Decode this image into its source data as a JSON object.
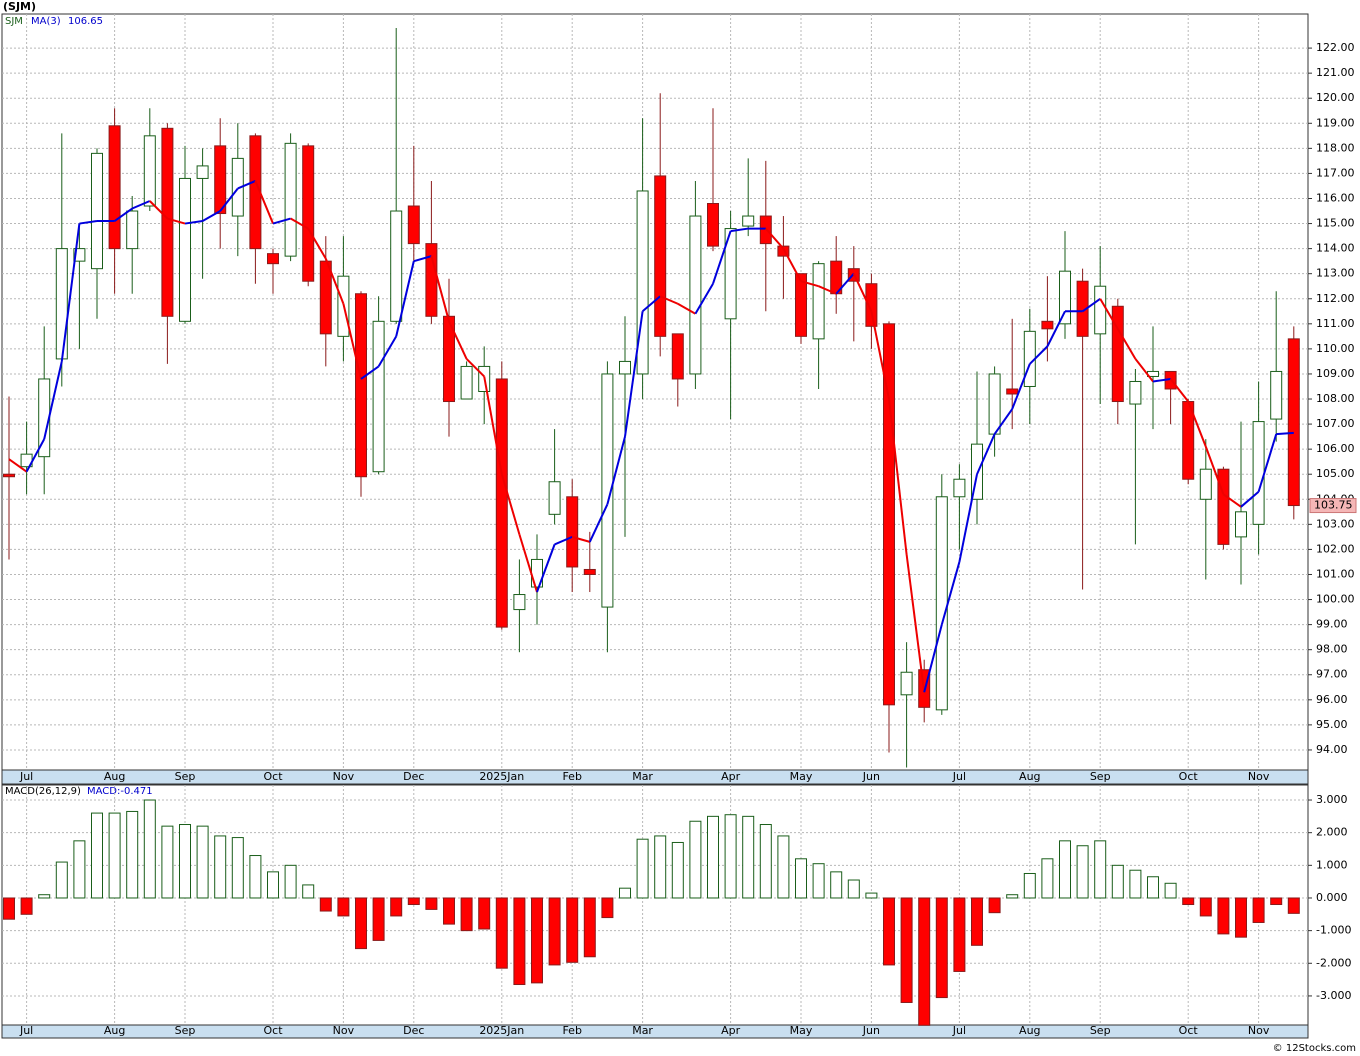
{
  "title": "(SJM)",
  "footer": "© 12Stocks.com",
  "chart_data": [
    {
      "type": "candlestick",
      "symbol": "SJM",
      "ma_name": "MA(3)",
      "up_color": "#1a5e1a",
      "down_color": "#ff0000",
      "ma_up_color": "#0000dd",
      "ma_down_color": "#ee0000",
      "last_color": "#f4b6b6",
      "grid": true,
      "categories": [
        null,
        "Jul",
        null,
        null,
        null,
        null,
        "Aug",
        null,
        null,
        null,
        "Sep",
        null,
        null,
        null,
        null,
        "Oct",
        null,
        null,
        null,
        "Nov",
        null,
        null,
        null,
        "Dec",
        null,
        null,
        null,
        null,
        "2025Jan",
        null,
        null,
        null,
        "Feb",
        null,
        null,
        null,
        "Mar",
        null,
        null,
        null,
        null,
        "Apr",
        null,
        null,
        null,
        "May",
        null,
        null,
        null,
        "Jun",
        null,
        null,
        null,
        null,
        "Jul",
        null,
        null,
        null,
        "Aug",
        null,
        null,
        null,
        "Sep",
        null,
        null,
        null,
        null,
        "Oct",
        null,
        null,
        null,
        "Nov",
        null,
        null
      ],
      "open": [
        105.0,
        105.3,
        105.7,
        109.6,
        113.5,
        113.2,
        118.9,
        114.0,
        115.7,
        118.8,
        111.1,
        116.8,
        118.1,
        115.3,
        118.5,
        113.8,
        113.7,
        118.1,
        113.5,
        110.5,
        112.2,
        105.1,
        111.1,
        115.7,
        114.2,
        111.3,
        108.0,
        108.3,
        108.8,
        99.6,
        100.5,
        103.4,
        104.1,
        101.2,
        99.7,
        109.0,
        109.0,
        116.9,
        110.6,
        109.0,
        115.8,
        111.2,
        114.9,
        115.3,
        114.1,
        113.0,
        110.4,
        113.5,
        113.2,
        112.6,
        111.0,
        96.2,
        97.2,
        95.6,
        104.1,
        104.0,
        106.6,
        108.4,
        108.5,
        111.1,
        111.0,
        112.7,
        110.6,
        111.7,
        107.8,
        108.9,
        109.1,
        107.9,
        104.0,
        105.2,
        102.5,
        103.0,
        107.2,
        110.4
      ],
      "high": [
        108.1,
        107.1,
        110.9,
        118.6,
        115.0,
        118.0,
        119.6,
        116.1,
        119.6,
        119.0,
        118.1,
        118.0,
        119.2,
        119.0,
        118.6,
        114.0,
        118.6,
        118.2,
        114.5,
        114.5,
        112.3,
        112.1,
        122.8,
        118.1,
        116.7,
        112.8,
        109.5,
        110.1,
        109.5,
        101.6,
        102.6,
        106.8,
        104.8,
        102.7,
        109.5,
        111.3,
        119.2,
        120.2,
        110.6,
        116.7,
        119.6,
        115.5,
        117.6,
        117.5,
        115.3,
        113.0,
        113.5,
        114.5,
        114.1,
        113.0,
        111.1,
        98.3,
        97.6,
        105.0,
        105.4,
        109.1,
        109.3,
        111.2,
        111.6,
        112.9,
        114.7,
        113.2,
        114.1,
        112.0,
        109.2,
        110.9,
        109.1,
        108.0,
        106.4,
        105.3,
        107.1,
        108.7,
        112.3,
        110.9
      ],
      "low": [
        101.6,
        104.2,
        104.2,
        108.5,
        110.0,
        111.2,
        112.2,
        112.2,
        115.5,
        109.4,
        111.0,
        112.8,
        114.0,
        113.7,
        112.6,
        112.2,
        113.5,
        112.5,
        109.3,
        109.5,
        104.1,
        105.0,
        111.0,
        113.5,
        111.0,
        106.5,
        108.0,
        107.0,
        98.8,
        97.9,
        99.0,
        103.0,
        100.3,
        100.3,
        97.9,
        102.5,
        108.0,
        109.7,
        107.7,
        108.4,
        113.9,
        107.2,
        114.5,
        111.5,
        112.0,
        110.2,
        108.4,
        111.4,
        110.3,
        110.0,
        93.9,
        93.3,
        95.1,
        95.4,
        102.0,
        103.0,
        105.7,
        106.8,
        107.0,
        109.5,
        110.4,
        100.4,
        107.8,
        107.0,
        102.2,
        106.8,
        107.0,
        104.6,
        100.8,
        102.0,
        100.6,
        101.8,
        106.3,
        103.2
      ],
      "close": [
        104.9,
        105.8,
        108.8,
        114.0,
        114.0,
        117.8,
        114.0,
        115.5,
        118.5,
        111.3,
        116.8,
        117.3,
        115.4,
        117.6,
        114.0,
        113.4,
        118.2,
        112.7,
        110.6,
        112.9,
        104.9,
        111.1,
        115.5,
        114.2,
        111.3,
        107.9,
        109.3,
        109.3,
        98.9,
        100.2,
        101.6,
        104.7,
        101.3,
        101.0,
        109.0,
        109.5,
        116.3,
        110.5,
        108.8,
        115.3,
        114.1,
        114.8,
        115.3,
        114.2,
        113.7,
        110.5,
        113.4,
        112.2,
        112.7,
        110.9,
        95.8,
        97.1,
        95.7,
        104.1,
        104.8,
        106.2,
        109.0,
        108.2,
        110.7,
        110.8,
        113.1,
        110.5,
        112.5,
        107.9,
        108.7,
        109.1,
        108.4,
        104.8,
        105.2,
        102.2,
        103.5,
        107.1,
        109.1,
        103.75
      ],
      "ma": [
        105.6,
        105.1,
        106.4,
        109.5,
        115.0,
        115.1,
        115.1,
        115.6,
        115.9,
        115.2,
        115.0,
        115.1,
        115.5,
        116.4,
        116.7,
        115.0,
        115.2,
        114.8,
        113.6,
        111.8,
        108.8,
        109.3,
        110.5,
        113.5,
        113.7,
        111.1,
        109.6,
        108.9,
        105.0,
        102.6,
        100.3,
        102.2,
        102.5,
        102.3,
        103.8,
        106.5,
        111.5,
        112.1,
        111.8,
        111.4,
        112.6,
        114.7,
        114.8,
        114.8,
        114.0,
        112.7,
        112.5,
        112.2,
        113.0,
        111.5,
        108.0,
        101.8,
        96.3,
        99.0,
        101.5,
        105.0,
        106.6,
        107.6,
        109.4,
        110.1,
        111.5,
        111.5,
        112.0,
        110.8,
        109.6,
        108.7,
        108.8,
        107.9,
        106.1,
        104.2,
        103.7,
        104.3,
        106.6,
        106.65
      ],
      "ylim": [
        93.2,
        123.36
      ],
      "yticks": [
        {
          "value": 94,
          "label": "94.00"
        },
        {
          "value": 95,
          "label": "95.00"
        },
        {
          "value": 96,
          "label": "96.00"
        },
        {
          "value": 97,
          "label": "97.00"
        },
        {
          "value": 98,
          "label": "98.00"
        },
        {
          "value": 99,
          "label": "99.00"
        },
        {
          "value": 100,
          "label": "100.00"
        },
        {
          "value": 101,
          "label": "101.00"
        },
        {
          "value": 102,
          "label": "102.00"
        },
        {
          "value": 103,
          "label": "103.00"
        },
        {
          "value": 104,
          "label": "104.00"
        },
        {
          "value": 105,
          "label": "105.00"
        },
        {
          "value": 106,
          "label": "106.00"
        },
        {
          "value": 107,
          "label": "107.00"
        },
        {
          "value": 108,
          "label": "108.00"
        },
        {
          "value": 109,
          "label": "109.00"
        },
        {
          "value": 110,
          "label": "110.00"
        },
        {
          "value": 111,
          "label": "111.00"
        },
        {
          "value": 112,
          "label": "112.00"
        },
        {
          "value": 113,
          "label": "113.00"
        },
        {
          "value": 114,
          "label": "114.00"
        },
        {
          "value": 115,
          "label": "115.00"
        },
        {
          "value": 116,
          "label": "116.00"
        },
        {
          "value": 117,
          "label": "117.00"
        },
        {
          "value": 118,
          "label": "118.00"
        },
        {
          "value": 119,
          "label": "119.00"
        },
        {
          "value": 120,
          "label": "120.00"
        },
        {
          "value": 121,
          "label": "121.00"
        },
        {
          "value": 122,
          "label": "122.00"
        }
      ]
    },
    {
      "type": "bar",
      "name": "MACD(26,12,9)",
      "value_name": "MACD:",
      "up_color": "#1a5e1a",
      "down_color": "#ff0000",
      "grid": true,
      "categories": [
        null,
        "Jul",
        null,
        null,
        null,
        null,
        "Aug",
        null,
        null,
        null,
        "Sep",
        null,
        null,
        null,
        null,
        "Oct",
        null,
        null,
        null,
        "Nov",
        null,
        null,
        null,
        "Dec",
        null,
        null,
        null,
        null,
        "2025Jan",
        null,
        null,
        null,
        "Feb",
        null,
        null,
        null,
        "Mar",
        null,
        null,
        null,
        null,
        "Apr",
        null,
        null,
        null,
        "May",
        null,
        null,
        null,
        "Jun",
        null,
        null,
        null,
        null,
        "Jul",
        null,
        null,
        null,
        "Aug",
        null,
        null,
        null,
        "Sep",
        null,
        null,
        null,
        null,
        "Oct",
        null,
        null,
        null,
        "Nov",
        null,
        null
      ],
      "values": [
        -0.65,
        -0.5,
        0.1,
        1.1,
        1.75,
        2.6,
        2.6,
        2.65,
        3.0,
        2.2,
        2.25,
        2.2,
        1.9,
        1.85,
        1.3,
        0.8,
        1.0,
        0.4,
        -0.4,
        -0.55,
        -1.55,
        -1.3,
        -0.55,
        -0.2,
        -0.35,
        -0.8,
        -1.0,
        -0.95,
        -2.15,
        -2.65,
        -2.6,
        -2.05,
        -1.97,
        -1.8,
        -0.6,
        0.3,
        1.8,
        1.9,
        1.7,
        2.35,
        2.5,
        2.55,
        2.5,
        2.25,
        1.9,
        1.2,
        1.05,
        0.8,
        0.55,
        0.15,
        -2.05,
        -3.2,
        -3.9,
        -3.05,
        -2.25,
        -1.45,
        -0.45,
        0.1,
        0.75,
        1.2,
        1.75,
        1.6,
        1.75,
        1.0,
        0.85,
        0.65,
        0.45,
        -0.2,
        -0.55,
        -1.1,
        -1.2,
        -0.75,
        -0.2,
        -0.471
      ],
      "ylim": [
        -3.89,
        3.46
      ],
      "yticks": [
        {
          "value": 3,
          "label": "3.000"
        },
        {
          "value": 2,
          "label": "2.000"
        },
        {
          "value": 1,
          "label": "1.000"
        },
        {
          "value": 0,
          "label": "0.000"
        },
        {
          "value": -1,
          "label": "-1.000"
        },
        {
          "value": -2,
          "label": "-2.000"
        },
        {
          "value": -3,
          "label": "-3.000"
        }
      ]
    }
  ]
}
